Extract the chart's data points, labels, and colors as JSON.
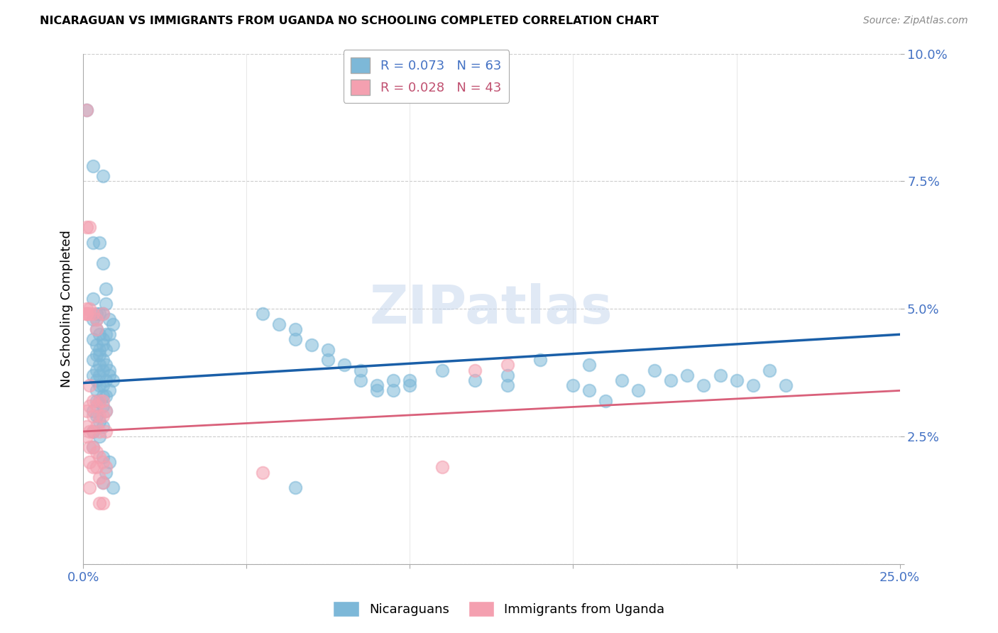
{
  "title": "NICARAGUAN VS IMMIGRANTS FROM UGANDA NO SCHOOLING COMPLETED CORRELATION CHART",
  "source": "Source: ZipAtlas.com",
  "ylabel": "No Schooling Completed",
  "xlim": [
    0.0,
    0.25
  ],
  "ylim": [
    0.0,
    0.1
  ],
  "yticks": [
    0.0,
    0.025,
    0.05,
    0.075,
    0.1
  ],
  "ytick_labels": [
    "",
    "2.5%",
    "5.0%",
    "7.5%",
    "10.0%"
  ],
  "xticks": [
    0.0,
    0.05,
    0.1,
    0.15,
    0.2,
    0.25
  ],
  "xtick_labels": [
    "0.0%",
    "",
    "",
    "",
    "",
    "25.0%"
  ],
  "nicaraguan_color": "#7db8d8",
  "uganda_color": "#f4a0b0",
  "trendline_nic_color": "#1a5fa8",
  "trendline_uga_color": "#d9607a",
  "watermark": "ZIPatlas",
  "nicaraguan_points": [
    [
      0.001,
      0.089
    ],
    [
      0.003,
      0.078
    ],
    [
      0.006,
      0.076
    ],
    [
      0.003,
      0.063
    ],
    [
      0.006,
      0.059
    ],
    [
      0.007,
      0.054
    ],
    [
      0.003,
      0.052
    ],
    [
      0.007,
      0.051
    ],
    [
      0.004,
      0.049
    ],
    [
      0.005,
      0.049
    ],
    [
      0.006,
      0.049
    ],
    [
      0.003,
      0.048
    ],
    [
      0.004,
      0.048
    ],
    [
      0.008,
      0.048
    ],
    [
      0.009,
      0.047
    ],
    [
      0.004,
      0.046
    ],
    [
      0.005,
      0.045
    ],
    [
      0.007,
      0.045
    ],
    [
      0.008,
      0.045
    ],
    [
      0.003,
      0.044
    ],
    [
      0.006,
      0.044
    ],
    [
      0.004,
      0.043
    ],
    [
      0.006,
      0.043
    ],
    [
      0.009,
      0.043
    ],
    [
      0.005,
      0.042
    ],
    [
      0.007,
      0.042
    ],
    [
      0.004,
      0.041
    ],
    [
      0.005,
      0.041
    ],
    [
      0.006,
      0.04
    ],
    [
      0.003,
      0.04
    ],
    [
      0.005,
      0.039
    ],
    [
      0.007,
      0.039
    ],
    [
      0.008,
      0.038
    ],
    [
      0.004,
      0.038
    ],
    [
      0.006,
      0.038
    ],
    [
      0.008,
      0.037
    ],
    [
      0.003,
      0.037
    ],
    [
      0.005,
      0.037
    ],
    [
      0.004,
      0.036
    ],
    [
      0.007,
      0.036
    ],
    [
      0.009,
      0.036
    ],
    [
      0.005,
      0.035
    ],
    [
      0.006,
      0.035
    ],
    [
      0.008,
      0.034
    ],
    [
      0.004,
      0.034
    ],
    [
      0.006,
      0.033
    ],
    [
      0.007,
      0.033
    ],
    [
      0.004,
      0.032
    ],
    [
      0.005,
      0.032
    ],
    [
      0.006,
      0.031
    ],
    [
      0.003,
      0.03
    ],
    [
      0.007,
      0.03
    ],
    [
      0.004,
      0.029
    ],
    [
      0.005,
      0.028
    ],
    [
      0.006,
      0.027
    ],
    [
      0.003,
      0.026
    ],
    [
      0.005,
      0.025
    ],
    [
      0.003,
      0.023
    ],
    [
      0.006,
      0.021
    ],
    [
      0.008,
      0.02
    ],
    [
      0.007,
      0.018
    ],
    [
      0.006,
      0.016
    ],
    [
      0.009,
      0.015
    ],
    [
      0.055,
      0.049
    ],
    [
      0.06,
      0.047
    ],
    [
      0.065,
      0.046
    ],
    [
      0.065,
      0.044
    ],
    [
      0.07,
      0.043
    ],
    [
      0.075,
      0.042
    ],
    [
      0.075,
      0.04
    ],
    [
      0.08,
      0.039
    ],
    [
      0.085,
      0.038
    ],
    [
      0.085,
      0.036
    ],
    [
      0.09,
      0.035
    ],
    [
      0.09,
      0.034
    ],
    [
      0.095,
      0.036
    ],
    [
      0.095,
      0.034
    ],
    [
      0.1,
      0.035
    ],
    [
      0.1,
      0.036
    ],
    [
      0.11,
      0.038
    ],
    [
      0.12,
      0.036
    ],
    [
      0.13,
      0.035
    ],
    [
      0.14,
      0.04
    ],
    [
      0.15,
      0.035
    ],
    [
      0.155,
      0.034
    ],
    [
      0.16,
      0.032
    ],
    [
      0.165,
      0.036
    ],
    [
      0.17,
      0.034
    ],
    [
      0.175,
      0.038
    ],
    [
      0.18,
      0.036
    ],
    [
      0.185,
      0.037
    ],
    [
      0.19,
      0.035
    ],
    [
      0.195,
      0.037
    ],
    [
      0.2,
      0.036
    ],
    [
      0.205,
      0.035
    ],
    [
      0.21,
      0.038
    ],
    [
      0.215,
      0.035
    ],
    [
      0.065,
      0.015
    ],
    [
      0.13,
      0.037
    ],
    [
      0.155,
      0.039
    ],
    [
      0.005,
      0.063
    ]
  ],
  "uganda_points": [
    [
      0.001,
      0.089
    ],
    [
      0.002,
      0.066
    ],
    [
      0.001,
      0.05
    ],
    [
      0.001,
      0.049
    ],
    [
      0.001,
      0.049
    ],
    [
      0.002,
      0.049
    ],
    [
      0.003,
      0.049
    ],
    [
      0.004,
      0.048
    ],
    [
      0.004,
      0.046
    ],
    [
      0.001,
      0.049
    ],
    [
      0.002,
      0.035
    ],
    [
      0.002,
      0.05
    ],
    [
      0.001,
      0.03
    ],
    [
      0.001,
      0.027
    ],
    [
      0.002,
      0.031
    ],
    [
      0.001,
      0.025
    ],
    [
      0.002,
      0.026
    ],
    [
      0.003,
      0.032
    ],
    [
      0.003,
      0.029
    ],
    [
      0.003,
      0.026
    ],
    [
      0.003,
      0.023
    ],
    [
      0.002,
      0.023
    ],
    [
      0.002,
      0.02
    ],
    [
      0.002,
      0.015
    ],
    [
      0.003,
      0.019
    ],
    [
      0.004,
      0.031
    ],
    [
      0.004,
      0.027
    ],
    [
      0.004,
      0.022
    ],
    [
      0.004,
      0.019
    ],
    [
      0.005,
      0.032
    ],
    [
      0.005,
      0.029
    ],
    [
      0.005,
      0.026
    ],
    [
      0.005,
      0.021
    ],
    [
      0.005,
      0.017
    ],
    [
      0.005,
      0.012
    ],
    [
      0.006,
      0.032
    ],
    [
      0.006,
      0.029
    ],
    [
      0.006,
      0.02
    ],
    [
      0.006,
      0.016
    ],
    [
      0.006,
      0.012
    ],
    [
      0.007,
      0.03
    ],
    [
      0.007,
      0.026
    ],
    [
      0.007,
      0.019
    ],
    [
      0.001,
      0.066
    ],
    [
      0.13,
      0.039
    ],
    [
      0.11,
      0.019
    ],
    [
      0.006,
      0.049
    ],
    [
      0.12,
      0.038
    ],
    [
      0.055,
      0.018
    ]
  ]
}
